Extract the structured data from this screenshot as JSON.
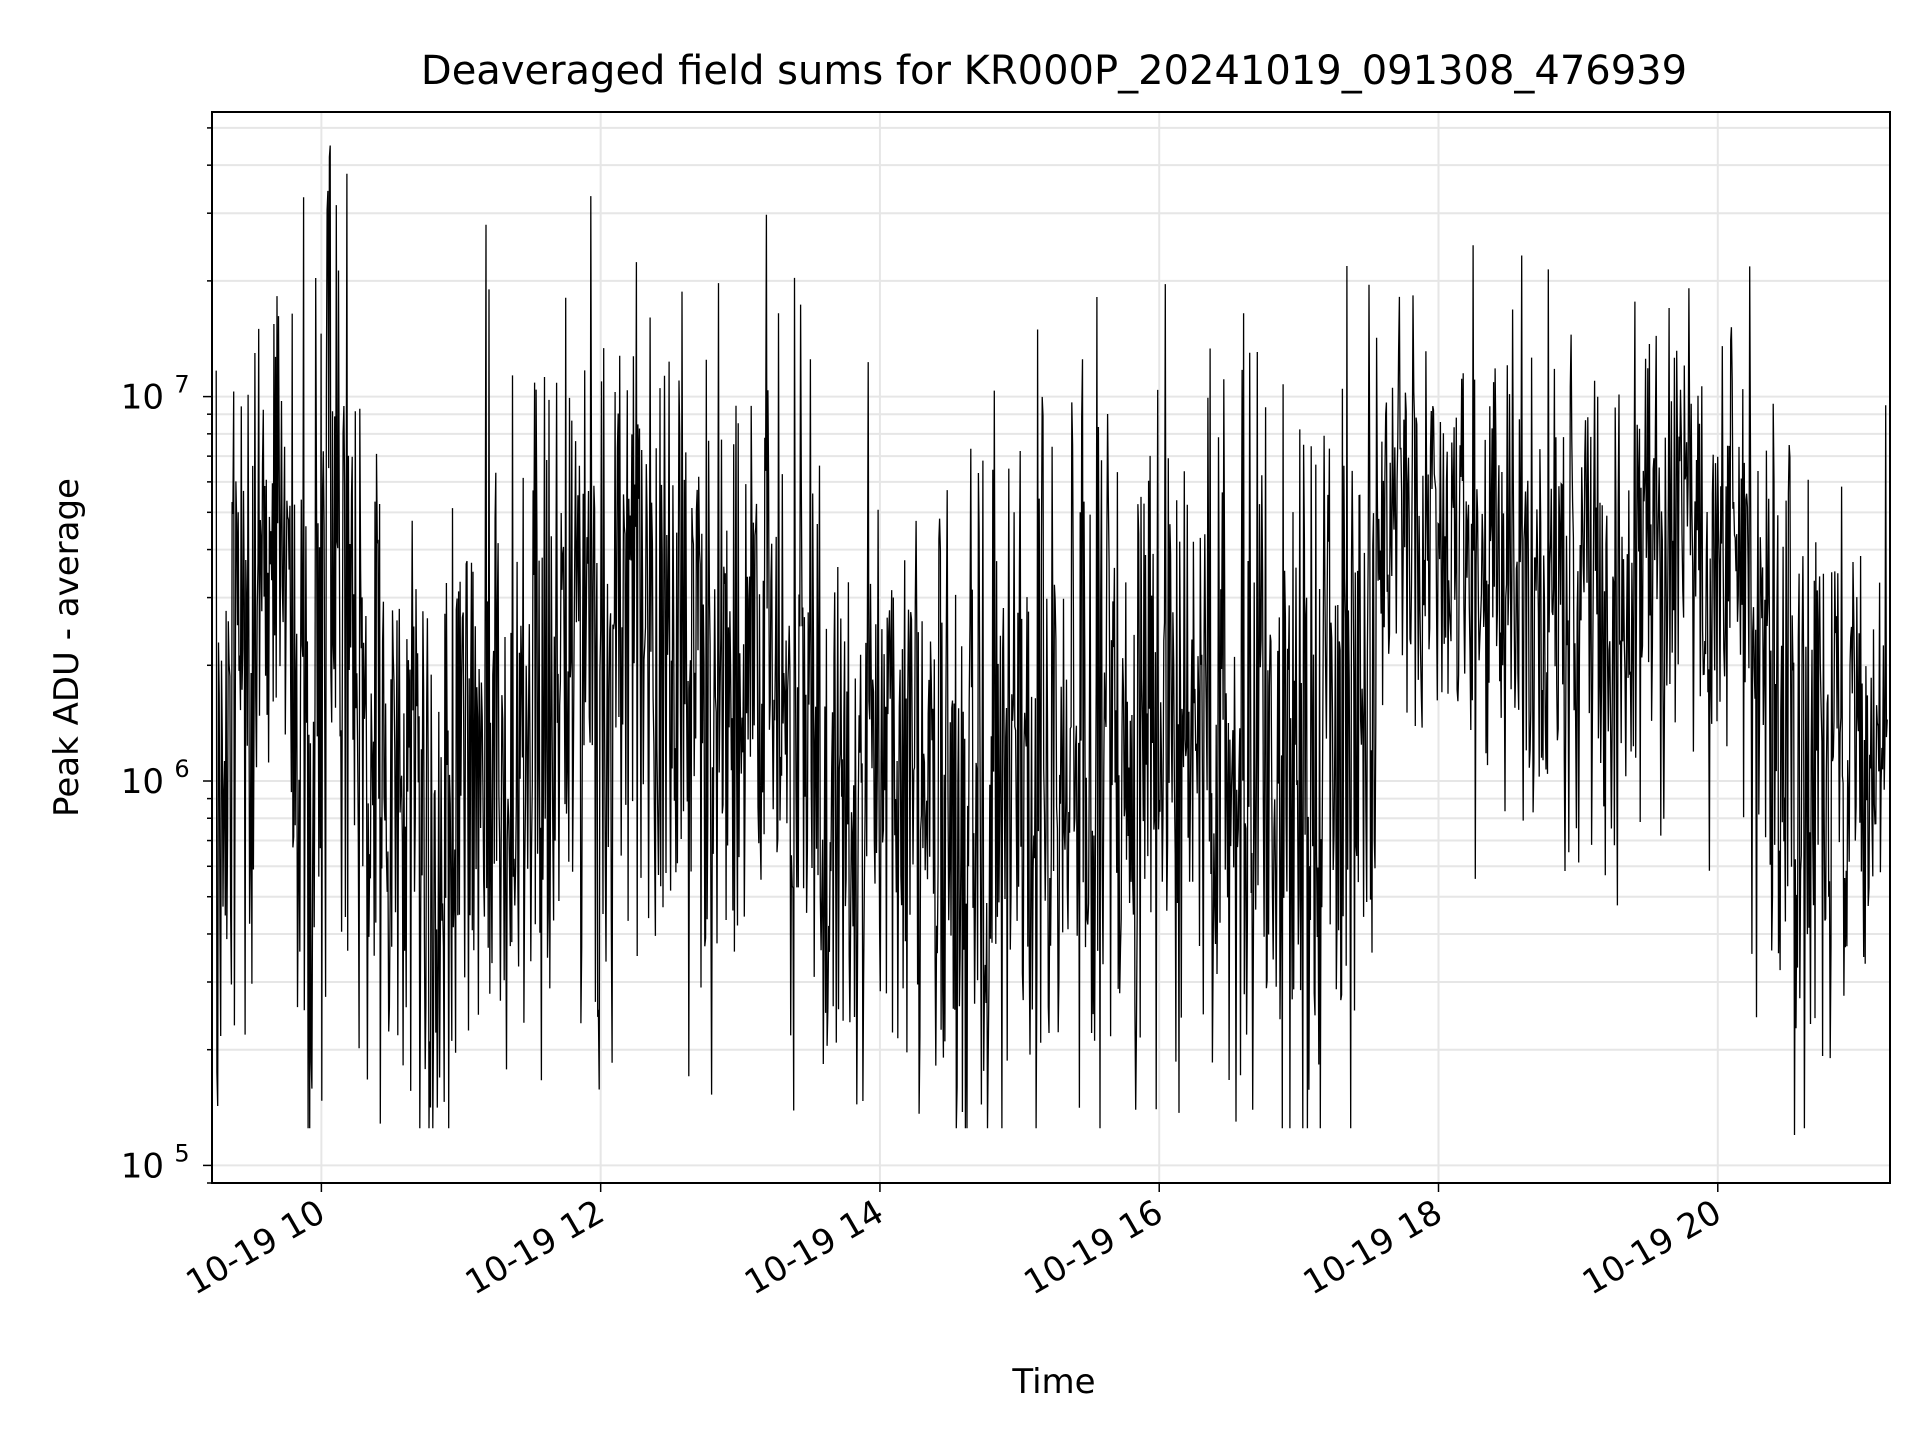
{
  "chart_data": {
    "type": "line",
    "title": "Deaveraged field sums for KR000P_20241019_091308_476939",
    "xlabel": "Time",
    "ylabel": "Peak ADU - average",
    "yscale": "log",
    "grid": true,
    "legend": "none",
    "line_color": "#000000",
    "grid_color": "#e6e6e6",
    "x_tick_labels": [
      "10-19 10",
      "10-19 12",
      "10-19 14",
      "10-19 16",
      "10-19 18",
      "10-19 20"
    ],
    "x_tick_hours": [
      10,
      12,
      14,
      16,
      18,
      20
    ],
    "y_tick_labels": [
      "10^5",
      "10^6",
      "10^7"
    ],
    "y_tick_values": [
      100000,
      1000000,
      10000000
    ],
    "xlim": [
      "2024-10-19 09:13",
      "2024-10-19 21:14"
    ],
    "ylim": [
      90000,
      55000000
    ],
    "series": [
      {
        "x_hours": [
          9.22,
          9.35,
          9.5,
          9.65,
          9.8,
          9.95,
          10.05,
          10.15,
          10.25,
          10.4,
          10.55,
          10.7,
          10.85,
          11.0,
          11.15,
          11.3,
          11.45,
          11.6,
          11.75,
          11.9,
          12.05,
          12.2,
          12.35,
          12.5,
          12.65,
          12.8,
          12.95,
          13.1,
          13.25,
          13.4,
          13.55,
          13.7,
          13.85,
          14.0,
          14.15,
          14.3,
          14.45,
          14.6,
          14.75,
          14.9,
          15.05,
          15.2,
          15.35,
          15.5,
          15.65,
          15.8,
          15.95,
          16.1,
          16.25,
          16.4,
          16.55,
          16.7,
          16.85,
          17.0,
          17.15,
          17.3,
          17.45,
          17.6,
          17.75,
          17.9,
          18.05,
          18.2,
          18.35,
          18.5,
          18.65,
          18.8,
          18.95,
          19.1,
          19.25,
          19.4,
          19.55,
          19.7,
          19.85,
          20.0,
          20.15,
          20.3,
          20.45,
          20.6,
          20.75,
          20.9,
          21.05,
          21.2
        ],
        "y_mean": [
          1200000,
          1500000,
          2000000,
          7500000,
          800000,
          1500000,
          6000000,
          4000000,
          1500000,
          1200000,
          900000,
          700000,
          600000,
          1300000,
          1500000,
          900000,
          1100000,
          1400000,
          2000000,
          2200000,
          2000000,
          2500000,
          3000000,
          3000000,
          2000000,
          1800000,
          2200000,
          2800000,
          2000000,
          1500000,
          1200000,
          1100000,
          1200000,
          1300000,
          1000000,
          900000,
          800000,
          700000,
          650000,
          800000,
          900000,
          1000000,
          1200000,
          1100000,
          1000000,
          1100000,
          1300000,
          1500000,
          1300000,
          1200000,
          1100000,
          1000000,
          900000,
          900000,
          1000000,
          1200000,
          1400000,
          5000000,
          5500000,
          4500000,
          5000000,
          4000000,
          3500000,
          3800000,
          3000000,
          3200000,
          3000000,
          3200000,
          3000000,
          3500000,
          3800000,
          4000000,
          4200000,
          3500000,
          3000000,
          2000000,
          1200000,
          900000,
          800000,
          1100000,
          1300000,
          1100000
        ],
        "y_spread_decades": [
          0.45,
          0.45,
          0.5,
          0.35,
          0.4,
          0.6,
          0.65,
          0.6,
          0.5,
          0.45,
          0.45,
          0.45,
          0.45,
          0.5,
          0.5,
          0.45,
          0.45,
          0.45,
          0.45,
          0.45,
          0.45,
          0.4,
          0.4,
          0.4,
          0.45,
          0.45,
          0.45,
          0.4,
          0.45,
          0.45,
          0.45,
          0.45,
          0.45,
          0.45,
          0.45,
          0.45,
          0.45,
          0.45,
          0.45,
          0.45,
          0.45,
          0.45,
          0.45,
          0.45,
          0.45,
          0.45,
          0.45,
          0.45,
          0.45,
          0.45,
          0.45,
          0.45,
          0.5,
          0.5,
          0.5,
          0.5,
          0.55,
          0.3,
          0.28,
          0.28,
          0.25,
          0.3,
          0.3,
          0.3,
          0.35,
          0.35,
          0.35,
          0.35,
          0.35,
          0.35,
          0.3,
          0.3,
          0.3,
          0.35,
          0.4,
          0.45,
          0.45,
          0.45,
          0.45,
          0.35,
          0.25,
          0.25
        ],
        "notable_peaks": [
          {
            "hour": 9.55,
            "value": 15000000
          },
          {
            "hour": 9.87,
            "value": 33000000
          },
          {
            "hour": 10.06,
            "value": 42000000
          },
          {
            "hour": 10.18,
            "value": 38000000
          },
          {
            "hour": 11.18,
            "value": 28000000
          },
          {
            "hour": 11.2,
            "value": 19000000
          },
          {
            "hour": 13.5,
            "value": 12500000
          },
          {
            "hour": 15.45,
            "value": 12500000
          },
          {
            "hour": 16.65,
            "value": 13000000
          },
          {
            "hour": 18.95,
            "value": 14500000
          },
          {
            "hour": 19.65,
            "value": 17000000
          },
          {
            "hour": 21.2,
            "value": 9500000
          }
        ],
        "notable_dips": [
          {
            "hour": 9.25,
            "value": 175000
          },
          {
            "hour": 12.08,
            "value": 185000
          },
          {
            "hour": 14.55,
            "value": 160000
          },
          {
            "hour": 15.98,
            "value": 140000
          },
          {
            "hour": 16.55,
            "value": 130000
          },
          {
            "hour": 20.55,
            "value": 120000
          }
        ]
      }
    ]
  }
}
